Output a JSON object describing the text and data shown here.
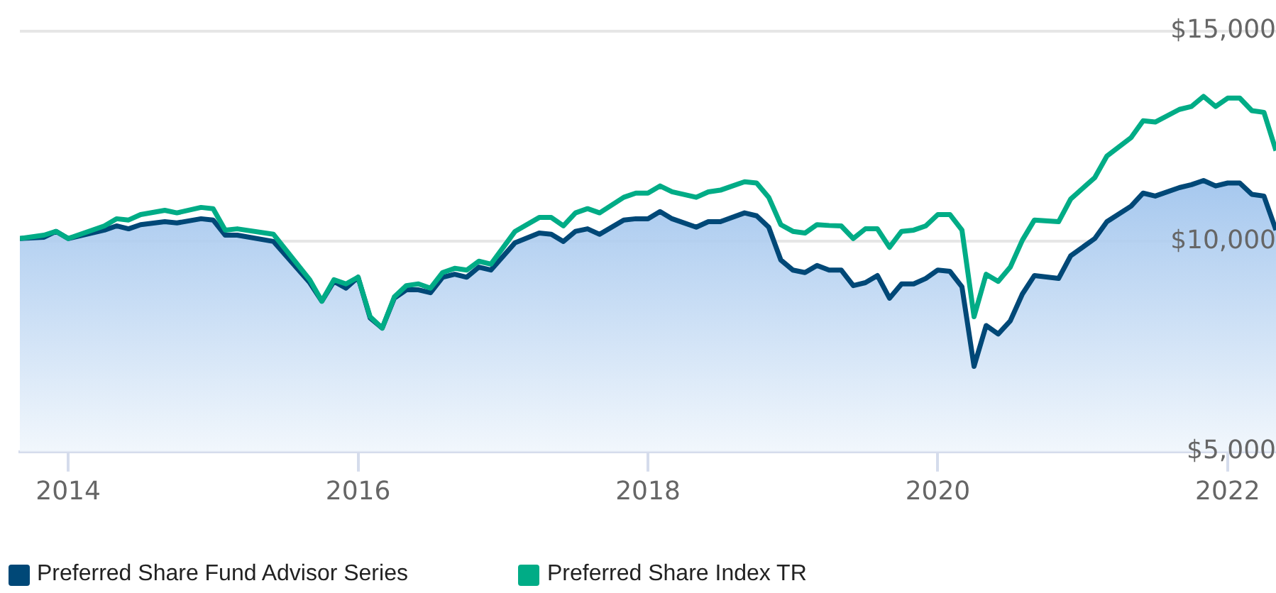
{
  "chart_data": {
    "type": "line",
    "x": [
      "2013-09",
      "2013-11",
      "2013-12",
      "2014-01",
      "2014-04",
      "2014-05",
      "2014-06",
      "2014-07",
      "2014-09",
      "2014-10",
      "2014-12",
      "2015-01",
      "2015-02",
      "2015-03",
      "2015-06",
      "2015-09",
      "2015-10",
      "2015-11",
      "2015-12",
      "2016-01",
      "2016-02",
      "2016-03",
      "2016-04",
      "2016-05",
      "2016-06",
      "2016-07",
      "2016-08",
      "2016-09",
      "2016-10",
      "2016-11",
      "2016-12",
      "2017-02",
      "2017-04",
      "2017-05",
      "2017-06",
      "2017-07",
      "2017-08",
      "2017-09",
      "2017-11",
      "2017-12",
      "2018-01",
      "2018-02",
      "2018-03",
      "2018-05",
      "2018-06",
      "2018-07",
      "2018-09",
      "2018-10",
      "2018-11",
      "2018-12",
      "2019-01",
      "2019-02",
      "2019-03",
      "2019-04",
      "2019-05",
      "2019-06",
      "2019-07",
      "2019-08",
      "2019-09",
      "2019-10",
      "2019-11",
      "2019-12",
      "2020-01",
      "2020-02",
      "2020-03",
      "2020-04",
      "2020-05",
      "2020-06",
      "2020-07",
      "2020-08",
      "2020-09",
      "2020-11",
      "2020-12",
      "2021-02",
      "2021-03",
      "2021-05",
      "2021-06",
      "2021-07",
      "2021-09",
      "2021-10",
      "2021-11",
      "2021-12",
      "2022-01",
      "2022-02",
      "2022-03",
      "2022-04",
      "2022-05"
    ],
    "series": [
      {
        "name": "Preferred Share Fund Advisor Series",
        "type": "area",
        "color": "#004877",
        "values": [
          10070,
          10100,
          10240,
          10070,
          10270,
          10370,
          10300,
          10400,
          10470,
          10440,
          10540,
          10510,
          10150,
          10150,
          10000,
          9020,
          8580,
          9050,
          8890,
          9150,
          8180,
          7940,
          8650,
          8850,
          8850,
          8780,
          9150,
          9220,
          9150,
          9390,
          9320,
          9970,
          10200,
          10170,
          10000,
          10240,
          10300,
          10170,
          10510,
          10540,
          10540,
          10710,
          10540,
          10340,
          10470,
          10470,
          10680,
          10610,
          10340,
          9560,
          9320,
          9260,
          9430,
          9320,
          9320,
          8950,
          9020,
          9190,
          8650,
          8990,
          8990,
          9120,
          9320,
          9290,
          8920,
          7030,
          8000,
          7800,
          8110,
          8750,
          9190,
          9120,
          9660,
          10070,
          10470,
          10840,
          11150,
          11080,
          11280,
          11350,
          11450,
          11320,
          11390,
          11390,
          11120,
          11080,
          10270
        ]
      },
      {
        "name": "Preferred Share Index TR",
        "type": "line",
        "color": "#00ac86",
        "values": [
          10070,
          10150,
          10240,
          10070,
          10370,
          10540,
          10510,
          10640,
          10740,
          10680,
          10810,
          10780,
          10270,
          10300,
          10170,
          9090,
          8580,
          9090,
          8990,
          9150,
          8210,
          7940,
          8680,
          8950,
          8990,
          8890,
          9260,
          9360,
          9320,
          9530,
          9460,
          10240,
          10570,
          10570,
          10370,
          10680,
          10780,
          10680,
          11050,
          11150,
          11150,
          11320,
          11180,
          11050,
          11180,
          11220,
          11420,
          11390,
          11050,
          10400,
          10240,
          10200,
          10400,
          10380,
          10370,
          10070,
          10300,
          10300,
          9860,
          10240,
          10270,
          10370,
          10640,
          10640,
          10270,
          8210,
          9220,
          9050,
          9390,
          10030,
          10510,
          10470,
          11010,
          11520,
          12030,
          12470,
          12870,
          12840,
          13140,
          13210,
          13450,
          13210,
          13410,
          13410,
          13110,
          13070,
          12160
        ]
      }
    ],
    "xlim": [
      "2013-09",
      "2022-05"
    ],
    "xticks": [
      "2014",
      "2016",
      "2018",
      "2020",
      "2022"
    ],
    "ylim": [
      5000,
      15000
    ],
    "yticks": [
      {
        "value": 5000,
        "label": "$5,000"
      },
      {
        "value": 10000,
        "label": "$10,000"
      },
      {
        "value": 15000,
        "label": "$15,000"
      }
    ],
    "grid": "y",
    "legend": "bottom left",
    "marker": "none",
    "line_style": "solid"
  }
}
